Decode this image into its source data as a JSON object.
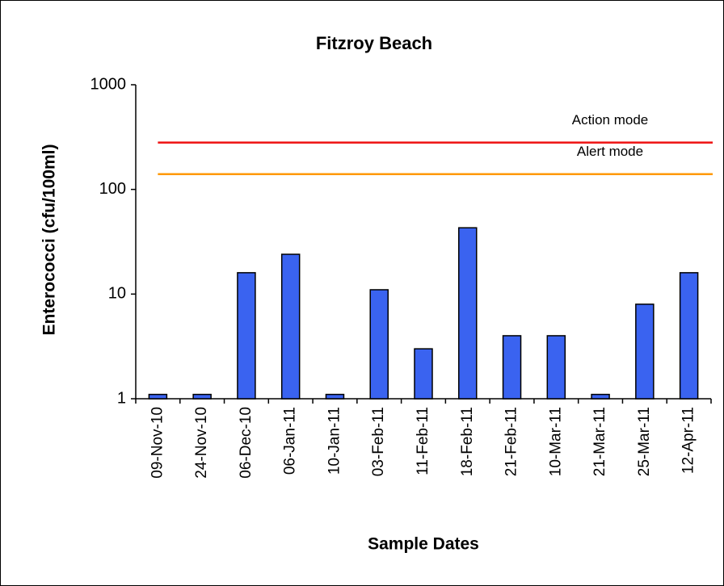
{
  "chart_data": {
    "type": "bar",
    "title": "Fitzroy Beach",
    "x_label": "Sample Dates",
    "y_label": "Enterococci (cfu/100ml)",
    "categories": [
      "09-Nov-10",
      "24-Nov-10",
      "06-Dec-10",
      "06-Jan-11",
      "10-Jan-11",
      "03-Feb-11",
      "11-Feb-11",
      "18-Feb-11",
      "21-Feb-11",
      "10-Mar-11",
      "21-Mar-11",
      "25-Mar-11",
      "12-Apr-11"
    ],
    "values": [
      1.1,
      1.1,
      16,
      24,
      1.1,
      11,
      3,
      43,
      4,
      4,
      1.1,
      8,
      16
    ],
    "color": "#3a63f0",
    "y_scale": "log",
    "ylim": [
      1,
      1000
    ],
    "yticks": [
      1,
      10,
      100,
      1000
    ],
    "grid": false,
    "reference_lines": [
      {
        "name": "Action mode",
        "value": 280,
        "color": "#ee1111"
      },
      {
        "name": "Alert mode",
        "value": 140,
        "color": "#ff9900"
      }
    ]
  }
}
